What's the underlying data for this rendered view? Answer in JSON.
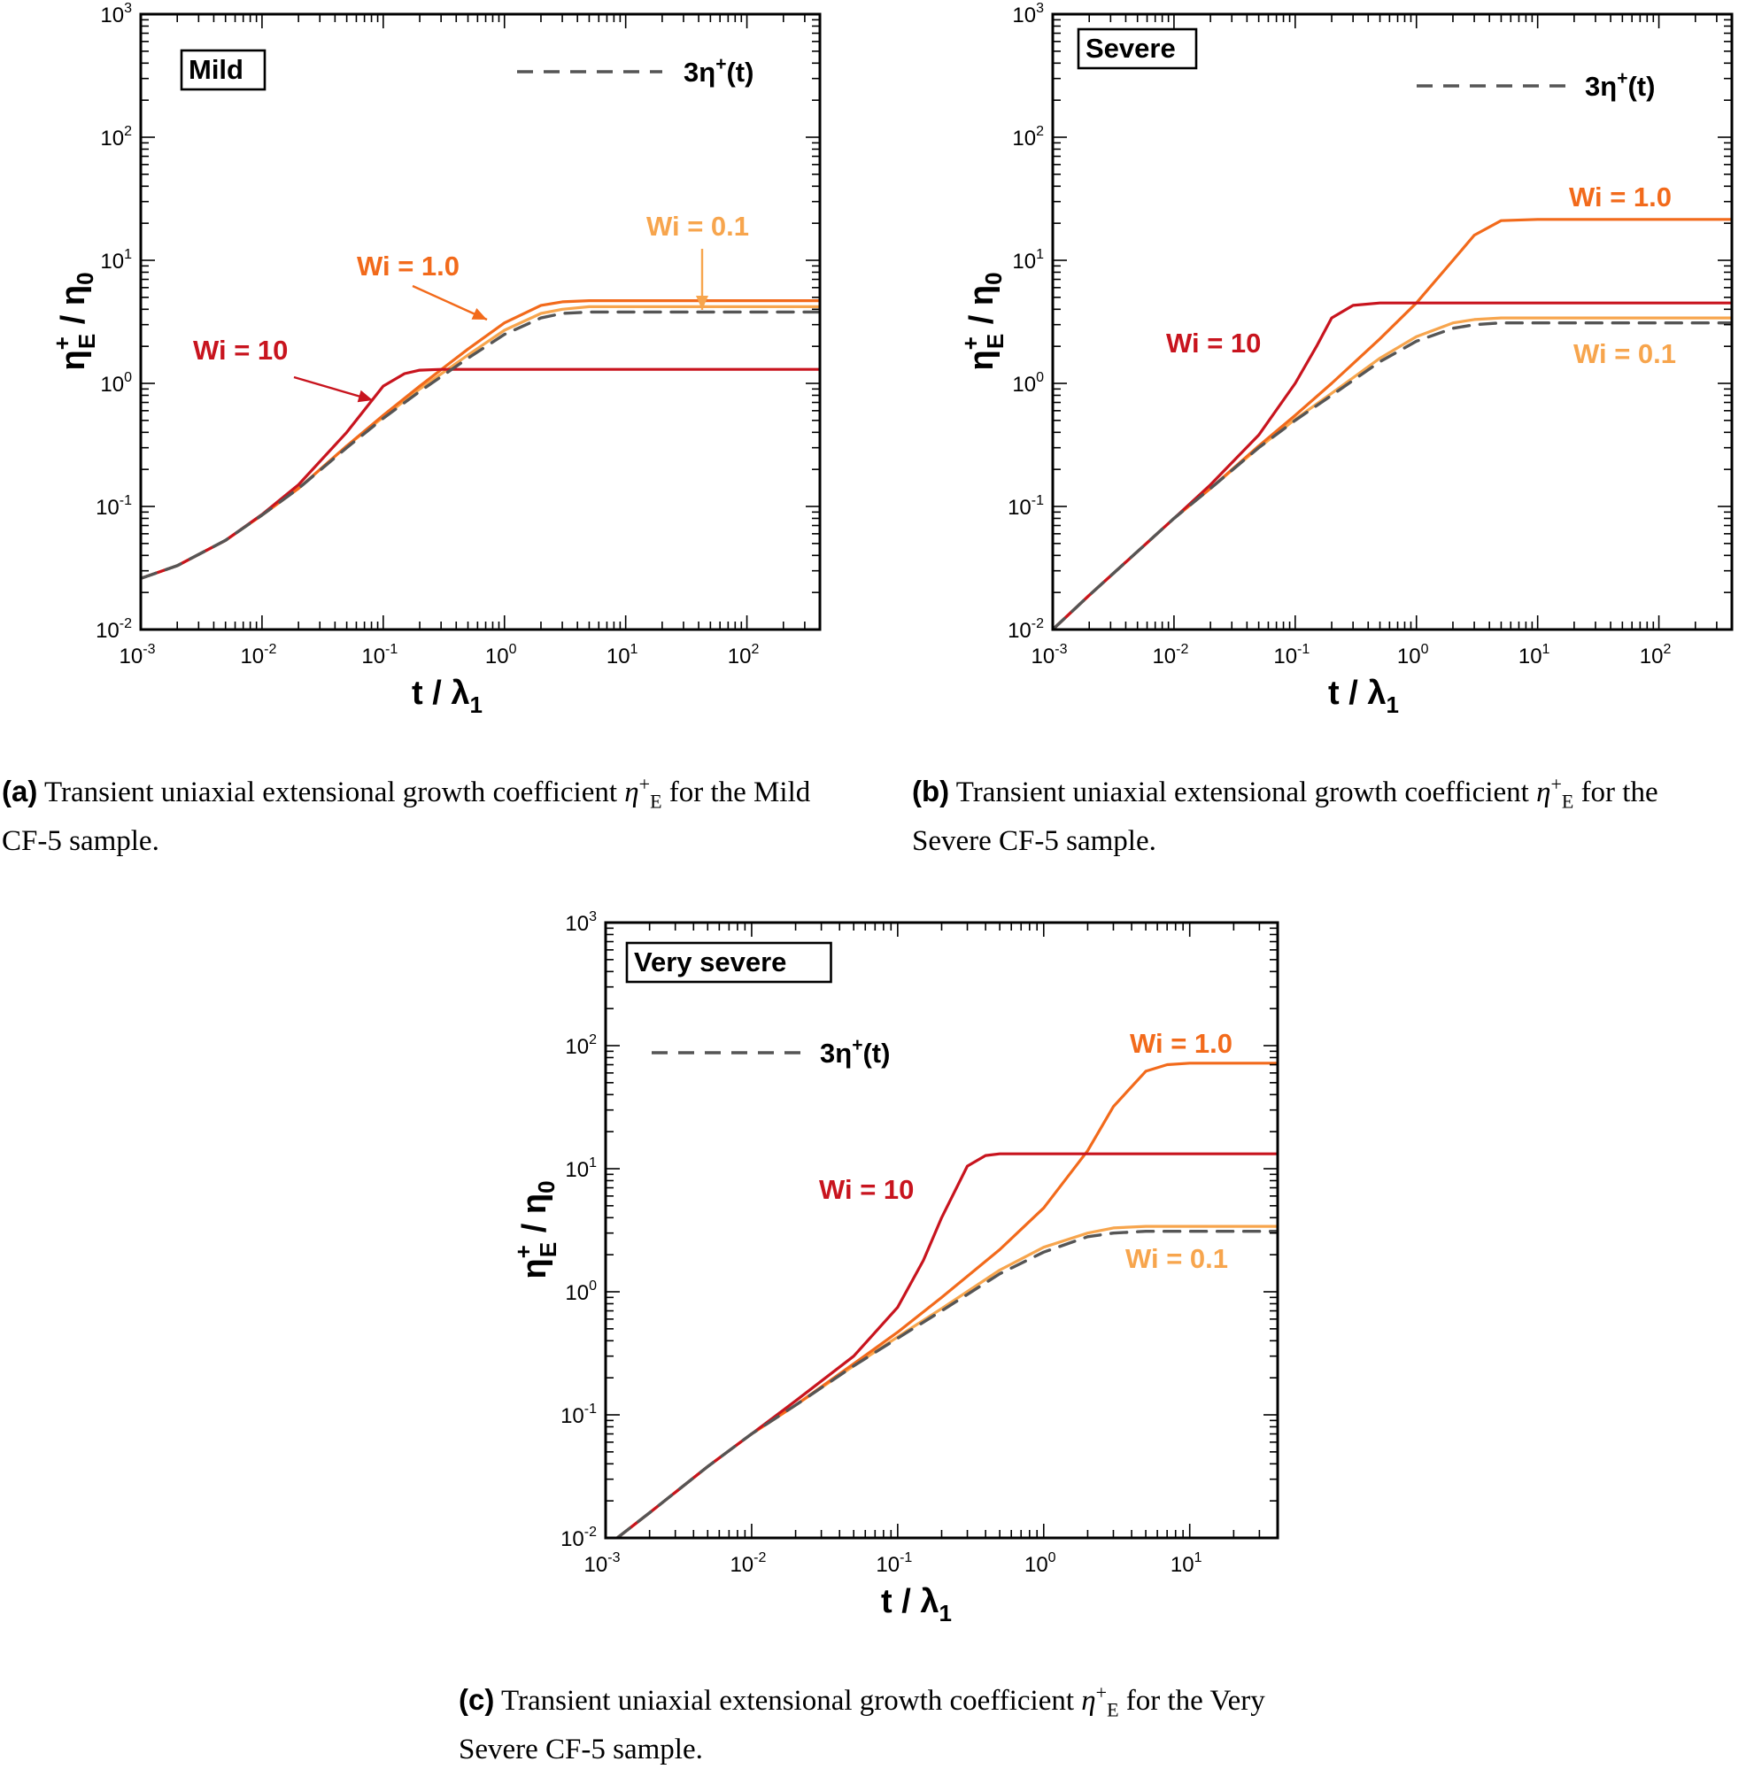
{
  "chart_data": [
    {
      "type": "line",
      "id": "a",
      "box_label": "Mild",
      "xlabel": "t / λ",
      "xlabel_sub": "1",
      "ylabel": "η",
      "ylabel_sup": "+",
      "ylabel_sub": "E",
      "ylabel_tail": " / η",
      "ylabel_tail_sub": "0",
      "xscale": "log",
      "yscale": "log",
      "xlim": [
        0.001,
        400
      ],
      "ylim": [
        0.01,
        1000
      ],
      "x_ticks": [
        {
          "base": "10",
          "exp": "-3"
        },
        {
          "base": "10",
          "exp": "-2"
        },
        {
          "base": "10",
          "exp": "-1"
        },
        {
          "base": "10",
          "exp": "0"
        },
        {
          "base": "10",
          "exp": "1"
        },
        {
          "base": "10",
          "exp": "2"
        }
      ],
      "y_ticks": [
        {
          "base": "10",
          "exp": "-2"
        },
        {
          "base": "10",
          "exp": "-1"
        },
        {
          "base": "10",
          "exp": "0"
        },
        {
          "base": "10",
          "exp": "1"
        },
        {
          "base": "10",
          "exp": "2"
        },
        {
          "base": "10",
          "exp": "3"
        }
      ],
      "legend": {
        "label": "3η",
        "label_sup": "+",
        "label_tail": "(t)",
        "placement": "top-right"
      },
      "series": [
        {
          "name": "3η+(t)",
          "label": "",
          "style": "dashed",
          "color": "#555555",
          "x": [
            0.001,
            0.002,
            0.005,
            0.01,
            0.02,
            0.05,
            0.1,
            0.2,
            0.5,
            1,
            2,
            3,
            5,
            10,
            400
          ],
          "y": [
            0.026,
            0.033,
            0.053,
            0.085,
            0.14,
            0.3,
            0.52,
            0.86,
            1.6,
            2.5,
            3.4,
            3.7,
            3.8,
            3.8,
            3.8
          ]
        },
        {
          "name": "Wi = 0.1",
          "label": "Wi = 0.1",
          "style": "solid",
          "color": "#f7a54d",
          "x": [
            0.001,
            0.002,
            0.005,
            0.01,
            0.02,
            0.05,
            0.1,
            0.2,
            0.5,
            1,
            2,
            3,
            5,
            10,
            400
          ],
          "y": [
            0.026,
            0.033,
            0.053,
            0.085,
            0.14,
            0.31,
            0.53,
            0.9,
            1.7,
            2.7,
            3.7,
            4.0,
            4.2,
            4.2,
            4.2
          ]
        },
        {
          "name": "Wi = 1.0",
          "label": "Wi = 1.0",
          "style": "solid",
          "color": "#f26a1b",
          "x": [
            0.001,
            0.002,
            0.005,
            0.01,
            0.02,
            0.05,
            0.1,
            0.2,
            0.5,
            1,
            2,
            3,
            5,
            10,
            400
          ],
          "y": [
            0.026,
            0.033,
            0.053,
            0.085,
            0.14,
            0.31,
            0.55,
            0.95,
            1.9,
            3.1,
            4.3,
            4.6,
            4.7,
            4.7,
            4.7
          ]
        },
        {
          "name": "Wi = 10",
          "label": "Wi = 10",
          "style": "solid",
          "color": "#c8141e",
          "x": [
            0.001,
            0.002,
            0.005,
            0.01,
            0.02,
            0.05,
            0.1,
            0.15,
            0.2,
            0.3,
            0.5,
            1,
            400
          ],
          "y": [
            0.026,
            0.033,
            0.053,
            0.086,
            0.15,
            0.4,
            0.95,
            1.2,
            1.28,
            1.3,
            1.3,
            1.3,
            1.3
          ]
        }
      ],
      "annotations": [
        {
          "text": "Wi = 10",
          "color": "#c8141e"
        },
        {
          "text": "Wi = 1.0",
          "color": "#f26a1b"
        },
        {
          "text": "Wi = 0.1",
          "color": "#f7a54d"
        }
      ]
    },
    {
      "type": "line",
      "id": "b",
      "box_label": "Severe",
      "xlabel": "t / λ",
      "xlabel_sub": "1",
      "ylabel": "η",
      "ylabel_sup": "+",
      "ylabel_sub": "E",
      "ylabel_tail": " / η",
      "ylabel_tail_sub": "0",
      "xscale": "log",
      "yscale": "log",
      "xlim": [
        0.001,
        400
      ],
      "ylim": [
        0.01,
        1000
      ],
      "x_ticks": [
        {
          "base": "10",
          "exp": "-3"
        },
        {
          "base": "10",
          "exp": "-2"
        },
        {
          "base": "10",
          "exp": "-1"
        },
        {
          "base": "10",
          "exp": "0"
        },
        {
          "base": "10",
          "exp": "1"
        },
        {
          "base": "10",
          "exp": "2"
        }
      ],
      "y_ticks": [
        {
          "base": "10",
          "exp": "-2"
        },
        {
          "base": "10",
          "exp": "-1"
        },
        {
          "base": "10",
          "exp": "0"
        },
        {
          "base": "10",
          "exp": "1"
        },
        {
          "base": "10",
          "exp": "2"
        },
        {
          "base": "10",
          "exp": "3"
        }
      ],
      "legend": {
        "label": "3η",
        "label_sup": "+",
        "label_tail": "(t)",
        "placement": "top-right"
      },
      "series": [
        {
          "name": "3η+(t)",
          "label": "",
          "style": "dashed",
          "color": "#555555",
          "x": [
            0.001,
            0.002,
            0.005,
            0.01,
            0.02,
            0.05,
            0.1,
            0.2,
            0.5,
            1,
            2,
            3,
            5,
            10,
            400
          ],
          "y": [
            0.01,
            0.019,
            0.043,
            0.08,
            0.14,
            0.3,
            0.5,
            0.8,
            1.5,
            2.2,
            2.8,
            3.0,
            3.1,
            3.1,
            3.1
          ]
        },
        {
          "name": "Wi = 0.1",
          "label": "Wi = 0.1",
          "style": "solid",
          "color": "#f7a54d",
          "x": [
            0.001,
            0.002,
            0.005,
            0.01,
            0.02,
            0.05,
            0.1,
            0.2,
            0.5,
            1,
            2,
            3,
            5,
            10,
            400
          ],
          "y": [
            0.01,
            0.019,
            0.043,
            0.08,
            0.14,
            0.3,
            0.51,
            0.83,
            1.6,
            2.4,
            3.1,
            3.3,
            3.4,
            3.4,
            3.4
          ]
        },
        {
          "name": "Wi = 1.0",
          "label": "Wi = 1.0",
          "style": "solid",
          "color": "#f26a1b",
          "x": [
            0.001,
            0.002,
            0.005,
            0.01,
            0.02,
            0.05,
            0.1,
            0.2,
            0.5,
            1,
            2,
            3,
            5,
            10,
            400
          ],
          "y": [
            0.01,
            0.019,
            0.043,
            0.08,
            0.14,
            0.31,
            0.55,
            1.0,
            2.3,
            4.5,
            10,
            16,
            21,
            21.5,
            21.5
          ]
        },
        {
          "name": "Wi = 10",
          "label": "Wi = 10",
          "style": "solid",
          "color": "#c8141e",
          "x": [
            0.001,
            0.002,
            0.005,
            0.01,
            0.02,
            0.05,
            0.1,
            0.15,
            0.2,
            0.3,
            0.5,
            1,
            400
          ],
          "y": [
            0.01,
            0.019,
            0.043,
            0.08,
            0.15,
            0.38,
            1.0,
            2.0,
            3.4,
            4.3,
            4.5,
            4.5,
            4.5
          ]
        }
      ],
      "annotations": [
        {
          "text": "Wi = 10",
          "color": "#c8141e"
        },
        {
          "text": "Wi = 1.0",
          "color": "#f26a1b"
        },
        {
          "text": "Wi = 0.1",
          "color": "#f7a54d"
        }
      ]
    },
    {
      "type": "line",
      "id": "c",
      "box_label": "Very severe",
      "xlabel": "t / λ",
      "xlabel_sub": "1",
      "ylabel": "η",
      "ylabel_sup": "+",
      "ylabel_sub": "E",
      "ylabel_tail": " / η",
      "ylabel_tail_sub": "0",
      "xscale": "log",
      "yscale": "log",
      "xlim": [
        0.001,
        40
      ],
      "ylim": [
        0.01,
        1000
      ],
      "x_ticks": [
        {
          "base": "10",
          "exp": "-3"
        },
        {
          "base": "10",
          "exp": "-2"
        },
        {
          "base": "10",
          "exp": "-1"
        },
        {
          "base": "10",
          "exp": "0"
        },
        {
          "base": "10",
          "exp": "1"
        }
      ],
      "y_ticks": [
        {
          "base": "10",
          "exp": "-2"
        },
        {
          "base": "10",
          "exp": "-1"
        },
        {
          "base": "10",
          "exp": "0"
        },
        {
          "base": "10",
          "exp": "1"
        },
        {
          "base": "10",
          "exp": "2"
        },
        {
          "base": "10",
          "exp": "3"
        }
      ],
      "legend": {
        "label": "3η",
        "label_sup": "+",
        "label_tail": "(t)",
        "placement": "upper-left"
      },
      "series": [
        {
          "name": "3η+(t)",
          "label": "",
          "style": "dashed",
          "color": "#555555",
          "x": [
            0.0012,
            0.002,
            0.005,
            0.01,
            0.02,
            0.05,
            0.1,
            0.2,
            0.5,
            1,
            2,
            3,
            5,
            10,
            40
          ],
          "y": [
            0.01,
            0.016,
            0.038,
            0.07,
            0.12,
            0.25,
            0.42,
            0.7,
            1.4,
            2.1,
            2.8,
            3.0,
            3.1,
            3.1,
            3.1
          ]
        },
        {
          "name": "Wi = 0.1",
          "label": "Wi = 0.1",
          "style": "solid",
          "color": "#f7a54d",
          "x": [
            0.0012,
            0.002,
            0.005,
            0.01,
            0.02,
            0.05,
            0.1,
            0.2,
            0.5,
            1,
            2,
            3,
            5,
            10,
            40
          ],
          "y": [
            0.01,
            0.016,
            0.038,
            0.07,
            0.12,
            0.25,
            0.43,
            0.73,
            1.5,
            2.3,
            3.0,
            3.3,
            3.4,
            3.4,
            3.4
          ]
        },
        {
          "name": "Wi = 1.0",
          "label": "Wi = 1.0",
          "style": "solid",
          "color": "#f26a1b",
          "x": [
            0.0012,
            0.002,
            0.005,
            0.01,
            0.02,
            0.05,
            0.1,
            0.2,
            0.5,
            1,
            2,
            3,
            5,
            7,
            10,
            40
          ],
          "y": [
            0.01,
            0.016,
            0.038,
            0.07,
            0.12,
            0.26,
            0.47,
            0.9,
            2.2,
            4.8,
            14,
            32,
            62,
            70,
            72,
            72
          ]
        },
        {
          "name": "Wi = 10",
          "label": "Wi = 10",
          "style": "solid",
          "color": "#c8141e",
          "x": [
            0.0012,
            0.002,
            0.005,
            0.01,
            0.02,
            0.05,
            0.1,
            0.15,
            0.2,
            0.3,
            0.4,
            0.5,
            1,
            40
          ],
          "y": [
            0.01,
            0.016,
            0.038,
            0.07,
            0.13,
            0.3,
            0.75,
            1.8,
            4.0,
            10.5,
            12.8,
            13.2,
            13.2,
            13.2
          ]
        }
      ],
      "annotations": [
        {
          "text": "Wi = 10",
          "color": "#c8141e"
        },
        {
          "text": "Wi = 1.0",
          "color": "#f26a1b"
        },
        {
          "text": "Wi = 0.1",
          "color": "#f7a54d"
        }
      ]
    }
  ],
  "captions": {
    "a": {
      "label": "(a)",
      "pre": " Transient uniaxial extensional growth coefficient ",
      "sym": "η",
      "sym_sub": "E",
      "sym_sup": "+",
      "post_line1": " for the Mild",
      "line2": "CF-5 sample."
    },
    "b": {
      "label": "(b)",
      "pre": " Transient uniaxial extensional growth coefficient ",
      "sym": "η",
      "sym_sub": "E",
      "sym_sup": "+",
      "post_line1": " for the",
      "line2": "Severe CF-5 sample."
    },
    "c": {
      "label": "(c)",
      "pre": " Transient uniaxial extensional growth coefficient ",
      "sym": "η",
      "sym_sub": "E",
      "sym_sup": "+",
      "post_line1": " for the Very",
      "line2": "Severe CF-5 sample."
    }
  }
}
